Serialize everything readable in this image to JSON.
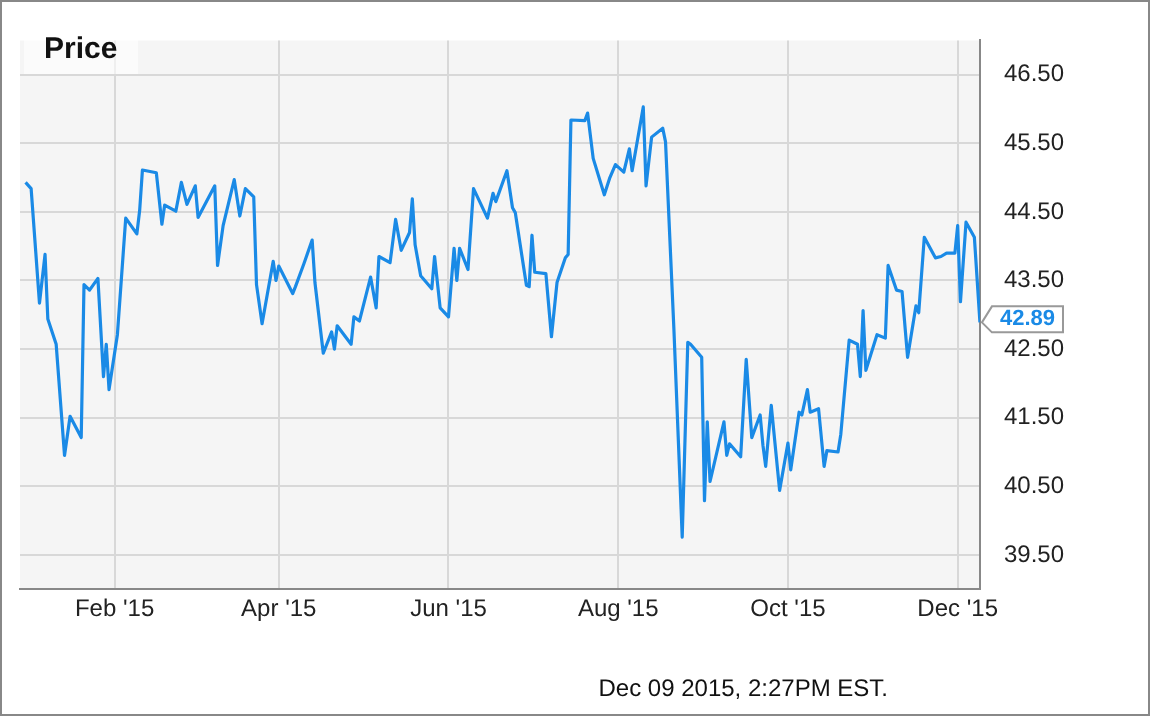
{
  "chart_data": {
    "type": "line",
    "title": "Price",
    "annotations": [
      "Dec 09 2015, 2:27PM EST."
    ],
    "x": [
      "2014-12-31",
      "2015-01-02",
      "2015-01-05",
      "2015-01-07",
      "2015-01-08",
      "2015-01-11",
      "2015-01-14",
      "2015-01-16",
      "2015-01-20",
      "2015-01-21",
      "2015-01-23",
      "2015-01-26",
      "2015-01-28",
      "2015-01-29",
      "2015-01-30",
      "2015-02-02",
      "2015-02-05",
      "2015-02-09",
      "2015-02-10",
      "2015-02-11",
      "2015-02-16",
      "2015-02-18",
      "2015-02-19",
      "2015-02-23",
      "2015-02-25",
      "2015-02-27",
      "2015-03-02",
      "2015-03-03",
      "2015-03-09",
      "2015-03-10",
      "2015-03-12",
      "2015-03-16",
      "2015-03-18",
      "2015-03-20",
      "2015-03-23",
      "2015-03-24",
      "2015-03-26",
      "2015-03-30",
      "2015-03-31",
      "2015-04-01",
      "2015-04-06",
      "2015-04-07",
      "2015-04-10",
      "2015-04-13",
      "2015-04-14",
      "2015-04-17",
      "2015-04-20",
      "2015-04-21",
      "2015-04-22",
      "2015-04-27",
      "2015-04-28",
      "2015-04-30",
      "2015-05-04",
      "2015-05-06",
      "2015-05-07",
      "2015-05-11",
      "2015-05-13",
      "2015-05-15",
      "2015-05-18",
      "2015-05-19",
      "2015-05-20",
      "2015-05-22",
      "2015-05-26",
      "2015-05-27",
      "2015-05-29",
      "2015-06-01",
      "2015-06-03",
      "2015-06-04",
      "2015-06-05",
      "2015-06-08",
      "2015-06-10",
      "2015-06-15",
      "2015-06-17",
      "2015-06-18",
      "2015-06-22",
      "2015-06-24",
      "2015-06-25",
      "2015-06-29",
      "2015-06-30",
      "2015-07-01",
      "2015-07-02",
      "2015-07-06",
      "2015-07-08",
      "2015-07-10",
      "2015-07-13",
      "2015-07-14",
      "2015-07-15",
      "2015-07-20",
      "2015-07-21",
      "2015-07-23",
      "2015-07-27",
      "2015-07-29",
      "2015-07-31",
      "2015-08-03",
      "2015-08-05",
      "2015-08-06",
      "2015-08-10",
      "2015-08-11",
      "2015-08-13",
      "2015-08-17",
      "2015-08-18",
      "2015-08-21",
      "2015-08-24",
      "2015-08-26",
      "2015-08-27",
      "2015-08-31",
      "2015-09-01",
      "2015-09-02",
      "2015-09-03",
      "2015-09-08",
      "2015-09-09",
      "2015-09-10",
      "2015-09-14",
      "2015-09-16",
      "2015-09-18",
      "2015-09-21",
      "2015-09-22",
      "2015-09-23",
      "2015-09-25",
      "2015-09-28",
      "2015-10-01",
      "2015-10-02",
      "2015-10-05",
      "2015-10-06",
      "2015-10-08",
      "2015-10-09",
      "2015-10-12",
      "2015-10-14",
      "2015-10-15",
      "2015-10-19",
      "2015-10-20",
      "2015-10-23",
      "2015-10-26",
      "2015-10-27",
      "2015-10-28",
      "2015-10-29",
      "2015-11-02",
      "2015-11-05",
      "2015-11-06",
      "2015-11-09",
      "2015-11-11",
      "2015-11-13",
      "2015-11-16",
      "2015-11-17",
      "2015-11-19",
      "2015-11-23",
      "2015-11-25",
      "2015-11-27",
      "2015-11-30",
      "2015-12-01",
      "2015-12-02",
      "2015-12-04",
      "2015-12-07",
      "2015-12-09"
    ],
    "series": [
      {
        "color": "#1a8ae6",
        "values": [
          44.93,
          44.84,
          43.17,
          43.88,
          42.94,
          42.57,
          40.95,
          41.52,
          41.21,
          43.44,
          43.36,
          43.53,
          42.1,
          42.57,
          41.91,
          42.71,
          44.41,
          44.18,
          44.52,
          45.11,
          45.07,
          44.32,
          44.6,
          44.51,
          44.93,
          44.61,
          44.88,
          44.42,
          44.88,
          43.72,
          44.3,
          44.97,
          44.44,
          44.84,
          44.72,
          43.44,
          42.87,
          43.78,
          43.5,
          43.71,
          43.31,
          43.41,
          43.74,
          44.09,
          43.47,
          42.44,
          42.75,
          42.5,
          42.84,
          42.57,
          42.97,
          42.91,
          43.55,
          43.1,
          43.85,
          43.76,
          44.39,
          43.94,
          44.2,
          44.69,
          44.02,
          43.57,
          43.38,
          43.85,
          43.1,
          42.97,
          43.97,
          43.5,
          43.97,
          43.66,
          44.84,
          44.41,
          44.77,
          44.65,
          45.1,
          44.56,
          44.49,
          43.43,
          43.41,
          44.16,
          43.62,
          43.6,
          42.68,
          43.47,
          43.83,
          43.88,
          45.84,
          45.83,
          45.94,
          45.28,
          44.75,
          45.0,
          45.19,
          45.08,
          45.42,
          45.1,
          46.03,
          44.88,
          45.59,
          45.72,
          45.52,
          42.8,
          39.76,
          42.6,
          42.57,
          42.38,
          40.29,
          41.44,
          40.57,
          41.44,
          40.95,
          41.12,
          40.93,
          42.35,
          41.21,
          41.54,
          41.1,
          40.79,
          41.68,
          40.44,
          41.13,
          40.74,
          41.58,
          41.54,
          41.91,
          41.58,
          41.63,
          40.79,
          41.02,
          41.0,
          41.26,
          42.63,
          42.57,
          42.1,
          43.06,
          42.19,
          42.71,
          42.66,
          43.72,
          43.36,
          43.34,
          42.38,
          43.13,
          43.03,
          44.13,
          43.83,
          43.85,
          43.9,
          43.9,
          44.3,
          43.19,
          44.35,
          44.13,
          42.89
        ],
        "value_labels": [
          null,
          null,
          null,
          null,
          null,
          null,
          null,
          null,
          null,
          null,
          null,
          null,
          null,
          null,
          null,
          null,
          null,
          null,
          null,
          null,
          null,
          null,
          null,
          null,
          null,
          null,
          null,
          null,
          null,
          null,
          null,
          null,
          null,
          null,
          null,
          null,
          null,
          null,
          null,
          null,
          null,
          null,
          null,
          null,
          null,
          null,
          null,
          null,
          null,
          null,
          null,
          null,
          null,
          null,
          null,
          null,
          null,
          null,
          null,
          null,
          null,
          null,
          null,
          null,
          null,
          null,
          null,
          null,
          null,
          null,
          null,
          null,
          null,
          null,
          null,
          null,
          null,
          null,
          null,
          null,
          null,
          null,
          null,
          null,
          null,
          null,
          null,
          null,
          null,
          null,
          null,
          null,
          null,
          null,
          null,
          null,
          null,
          null,
          null,
          null,
          null,
          null,
          null,
          null,
          null,
          null,
          null,
          null,
          null,
          null,
          null,
          null,
          null,
          null,
          null,
          null,
          null,
          null,
          null,
          null,
          null,
          null,
          null,
          null,
          null,
          null,
          null,
          null,
          null,
          null,
          null,
          null,
          null,
          null,
          null,
          null,
          null,
          null,
          null,
          null,
          null,
          null,
          null,
          null,
          null,
          null,
          null,
          null,
          null,
          null,
          null,
          null,
          null,
          "42.89"
        ]
      }
    ],
    "xlim": [
      "2014-12-29",
      "2015-12-09"
    ],
    "xticks": [
      {
        "value": "2015-02-01",
        "label": "Feb '15"
      },
      {
        "value": "2015-04-01",
        "label": "Apr '15"
      },
      {
        "value": "2015-06-01",
        "label": "Jun '15"
      },
      {
        "value": "2015-08-01",
        "label": "Aug '15"
      },
      {
        "value": "2015-10-01",
        "label": "Oct '15"
      },
      {
        "value": "2015-12-01",
        "label": "Dec '15"
      }
    ],
    "ylim": [
      39,
      47
    ],
    "yticks": [
      {
        "value": 39.5,
        "label": "39.50"
      },
      {
        "value": 40.5,
        "label": "40.50"
      },
      {
        "value": 41.5,
        "label": "41.50"
      },
      {
        "value": 42.5,
        "label": "42.50"
      },
      {
        "value": 43.5,
        "label": "43.50"
      },
      {
        "value": 44.5,
        "label": "44.50"
      },
      {
        "value": 45.5,
        "label": "45.50"
      },
      {
        "value": 46.5,
        "label": "46.50"
      }
    ],
    "grid": true,
    "legend": false,
    "marker": "none",
    "line_style": "solid"
  }
}
